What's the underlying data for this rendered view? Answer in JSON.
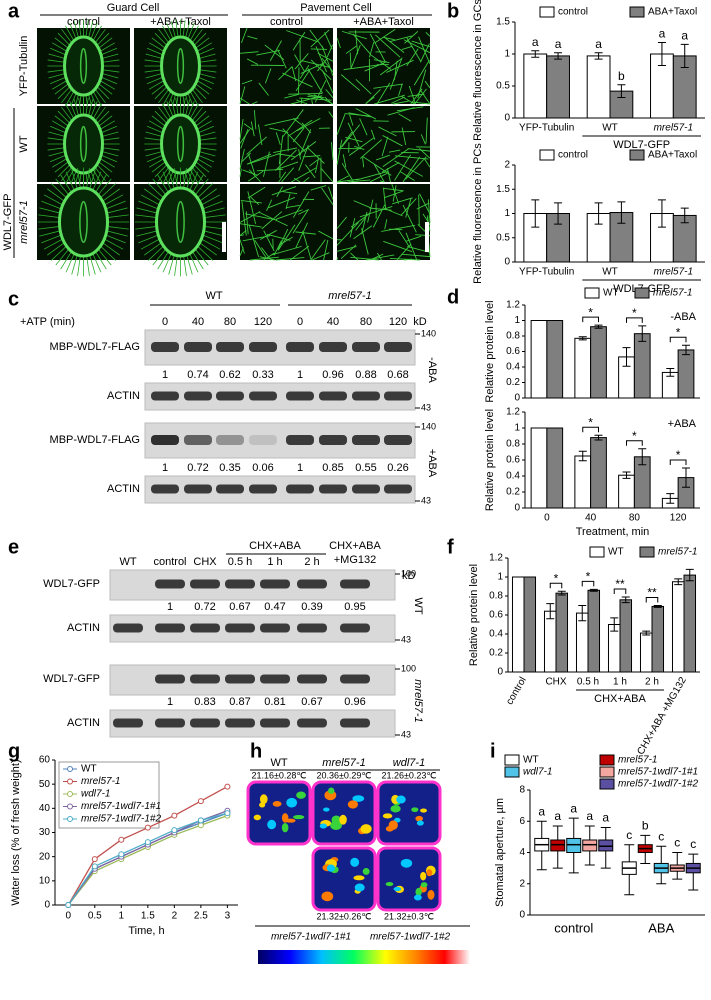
{
  "panel_letters": [
    "a",
    "b",
    "c",
    "d",
    "e",
    "f",
    "g",
    "h",
    "i"
  ],
  "panel_a": {
    "groups": [
      "Guard Cell",
      "Pavement Cell"
    ],
    "columns": [
      "control",
      "+ABA+Taxol",
      "control",
      "+ABA+Taxol"
    ],
    "rows": [
      "YFP-Tubulin",
      "WT",
      "mrel57-1"
    ],
    "row_group": "WDL7-GFP"
  },
  "panel_c": {
    "conditions": [
      "WT",
      "mrel57-1"
    ],
    "time_label": "+ATP (min)",
    "times": [
      0,
      40,
      80,
      120,
      0,
      40,
      80,
      120
    ],
    "unit": "kD",
    "blocks": [
      {
        "treatment": "-ABA",
        "target": "MBP-WDL7-FLAG",
        "quant": [
          1,
          0.74,
          0.62,
          0.33,
          1,
          0.96,
          0.88,
          0.68
        ],
        "loading": "ACTIN",
        "markers": [
          140,
          43
        ]
      },
      {
        "treatment": "+ABA",
        "target": "MBP-WDL7-FLAG",
        "quant": [
          1,
          0.72,
          0.35,
          0.06,
          1,
          0.85,
          0.55,
          0.26
        ],
        "loading": "ACTIN",
        "markers": [
          140,
          43
        ]
      }
    ]
  },
  "panel_e": {
    "lanes": [
      "WT",
      "control",
      "CHX",
      "0.5 h",
      "1 h",
      "2 h"
    ],
    "lane_group": "CHX+ABA",
    "last_lane": [
      "CHX+ABA",
      "+MG132"
    ],
    "unit": "kD",
    "blocks": [
      {
        "genotype": "WT",
        "target": "WDL7-GFP",
        "quant": [
          1,
          0.72,
          0.67,
          0.47,
          0.39,
          0.95
        ],
        "loading": "ACTIN",
        "markers": [
          100,
          43
        ]
      },
      {
        "genotype": "mrel57-1",
        "target": "WDL7-GFP",
        "quant": [
          1,
          0.83,
          0.87,
          0.81,
          0.67,
          0.96
        ],
        "loading": "ACTIN",
        "markers": [
          100,
          43
        ]
      }
    ]
  },
  "panel_h": {
    "genotypes": [
      "WT",
      "mrel57-1",
      "wdl7-1",
      "mrel57-1wdl7-1#1",
      "mrel57-1wdl7-1#2"
    ],
    "temperatures": [
      "21.16±0.28℃",
      "20.36±0.29℃",
      "21.26±0.23℃",
      "21.32±0.26℃",
      "21.32±0.3℃"
    ]
  },
  "chart_data": [
    {
      "type": "bar",
      "ylabel": "Relative fluorescence in GCs",
      "categories": [
        "YFP-Tubulin",
        "WT",
        "mrel57-1"
      ],
      "group_label": "WDL7-GFP",
      "series": [
        {
          "name": "control",
          "color": "#ffffff",
          "values": [
            1,
            0.97,
            1
          ],
          "errors": [
            0.05,
            0.05,
            0.18
          ],
          "letters": [
            "a",
            "a",
            "a"
          ]
        },
        {
          "name": "ABA+Taxol",
          "color": "#808080",
          "values": [
            0.97,
            0.42,
            0.97
          ],
          "errors": [
            0.05,
            0.1,
            0.18
          ],
          "letters": [
            "a",
            "b",
            "a"
          ]
        }
      ],
      "ylim": [
        0,
        1.5
      ],
      "yticks": [
        0,
        0.5,
        1,
        1.5
      ]
    },
    {
      "type": "bar",
      "ylabel": "Relative fluorescence in PCs",
      "categories": [
        "YFP-Tubulin",
        "WT",
        "mrel57-1"
      ],
      "group_label": "WDL7-GFP",
      "series": [
        {
          "name": "control",
          "color": "#ffffff",
          "values": [
            1,
            1,
            1
          ],
          "errors": [
            0.28,
            0.22,
            0.28
          ]
        },
        {
          "name": "ABA+Taxol",
          "color": "#808080",
          "values": [
            1,
            1.02,
            0.96
          ],
          "errors": [
            0.22,
            0.22,
            0.15
          ]
        }
      ],
      "ylim": [
        0,
        2
      ],
      "yticks": [
        0,
        0.5,
        1,
        1.5,
        2
      ]
    },
    {
      "type": "bar",
      "ylabel": "Relative protein level",
      "annotation": "-ABA",
      "series": [
        {
          "name": "WT",
          "color": "#ffffff",
          "values": [
            1,
            0.77,
            0.53,
            0.33
          ],
          "errors": [
            0,
            0.02,
            0.12,
            0.05
          ]
        },
        {
          "name": "mrel57-1",
          "color": "#7f7f7f",
          "values": [
            1,
            0.92,
            0.83,
            0.62
          ],
          "errors": [
            0,
            0.02,
            0.1,
            0.06
          ]
        }
      ],
      "significance": [
        null,
        "*",
        "*",
        "*"
      ],
      "ylim": [
        0,
        1.2
      ],
      "yticks": [
        0,
        0.2,
        0.4,
        0.6,
        0.8,
        1,
        1.2
      ]
    },
    {
      "type": "bar",
      "ylabel": "Relative protein level",
      "annotation": "+ABA",
      "categories": [
        0,
        40,
        80,
        120
      ],
      "xlabel": "Treatment, min",
      "series": [
        {
          "color": "#ffffff",
          "values": [
            1,
            0.65,
            0.41,
            0.12
          ],
          "errors": [
            0,
            0.06,
            0.04,
            0.06
          ]
        },
        {
          "color": "#7f7f7f",
          "values": [
            1,
            0.88,
            0.64,
            0.38
          ],
          "errors": [
            0,
            0.03,
            0.1,
            0.12
          ]
        }
      ],
      "significance": [
        null,
        "*",
        "*",
        "*"
      ],
      "ylim": [
        0,
        1.2
      ],
      "yticks": [
        0,
        0.2,
        0.4,
        0.6,
        0.8,
        1,
        1.2
      ]
    },
    {
      "type": "bar",
      "ylabel": "Relative protein level",
      "categories": [
        "control",
        "CHX",
        "0.5 h",
        "1 h",
        "2 h",
        "CHX+ABA +MG132"
      ],
      "group_label": "CHX+ABA",
      "series": [
        {
          "name": "WT",
          "color": "#ffffff",
          "values": [
            1,
            0.64,
            0.62,
            0.5,
            0.41,
            0.95
          ],
          "errors": [
            0,
            0.08,
            0.08,
            0.07,
            0.02,
            0.03
          ]
        },
        {
          "name": "mrel57-1",
          "color": "#7f7f7f",
          "values": [
            1,
            0.83,
            0.86,
            0.76,
            0.69,
            1.02
          ],
          "errors": [
            0,
            0.02,
            0.01,
            0.03,
            0.01,
            0.06
          ]
        }
      ],
      "significance": [
        null,
        "*",
        "*",
        "**",
        "**",
        null
      ],
      "ylim": [
        0,
        1.2
      ],
      "yticks": [
        0,
        0.2,
        0.4,
        0.6,
        0.8,
        1,
        1.2
      ]
    },
    {
      "type": "line",
      "xlabel": "Time, h",
      "ylabel": "Water loss (% of fresh weight)",
      "x": [
        0,
        0.5,
        1,
        1.5,
        2,
        2.5,
        3
      ],
      "series": [
        {
          "name": "WT",
          "color": "#4f81bd",
          "values": [
            0,
            15,
            20,
            25,
            30,
            34,
            38
          ]
        },
        {
          "name": "mrel57-1",
          "color": "#c0504d",
          "values": [
            0,
            19,
            27,
            32,
            37,
            43,
            49
          ]
        },
        {
          "name": "wdl7-1",
          "color": "#9bbb59",
          "values": [
            0,
            14,
            19,
            24,
            29,
            33,
            37
          ]
        },
        {
          "name": "mrel57-1wdl7-1#1",
          "color": "#8064a2",
          "values": [
            0,
            15,
            20,
            25,
            30,
            35,
            39
          ]
        },
        {
          "name": "mrel57-1wdl7-1#2",
          "color": "#4bacc6",
          "values": [
            0,
            16,
            21,
            26,
            31,
            35,
            38
          ]
        }
      ],
      "xlim": [
        -0.25,
        3.2
      ],
      "ylim": [
        0,
        60
      ],
      "xticks": [
        0,
        0.5,
        1,
        1.5,
        2,
        2.5,
        3
      ],
      "yticks": [
        0,
        10,
        20,
        30,
        40,
        50,
        60
      ]
    },
    {
      "type": "box",
      "ylabel": "Stomatal aperture, µm",
      "categories": [
        "control",
        "ABA"
      ],
      "series": [
        {
          "name": "WT",
          "color": "#ffffff",
          "stats": [
            [
              2.9,
              4.1,
              4.5,
              4.9,
              6.0
            ],
            [
              1.3,
              2.6,
              3.0,
              3.4,
              4.5
            ]
          ],
          "letters": [
            "a",
            "c"
          ]
        },
        {
          "name": "mrel57-1",
          "color": "#c00000",
          "stats": [
            [
              3.0,
              4.1,
              4.5,
              4.8,
              5.7
            ],
            [
              3.3,
              4.0,
              4.25,
              4.5,
              5.1
            ]
          ],
          "letters": [
            "a",
            "b"
          ]
        },
        {
          "name": "wdl7-1",
          "color": "#4fc3e8",
          "stats": [
            [
              2.7,
              4.0,
              4.5,
              4.9,
              6.2
            ],
            [
              2.0,
              2.7,
              3.0,
              3.3,
              4.4
            ]
          ],
          "letters": [
            "a",
            "c"
          ]
        },
        {
          "name": "mrel57-1wdl7-1#1",
          "color": "#f4a6a0",
          "stats": [
            [
              3.2,
              4.1,
              4.5,
              4.8,
              5.7
            ],
            [
              2.3,
              2.8,
              3.0,
              3.2,
              4.0
            ]
          ],
          "letters": [
            "a",
            "c"
          ]
        },
        {
          "name": "mrel57-1wdl7-1#2",
          "color": "#5a4fa0",
          "stats": [
            [
              3.0,
              4.1,
              4.4,
              4.8,
              5.6
            ],
            [
              1.6,
              2.7,
              3.0,
              3.3,
              3.9
            ]
          ],
          "letters": [
            "a",
            "c"
          ]
        }
      ],
      "ylim": [
        0,
        8
      ],
      "yticks": [
        0,
        2,
        4,
        6,
        8
      ]
    }
  ]
}
